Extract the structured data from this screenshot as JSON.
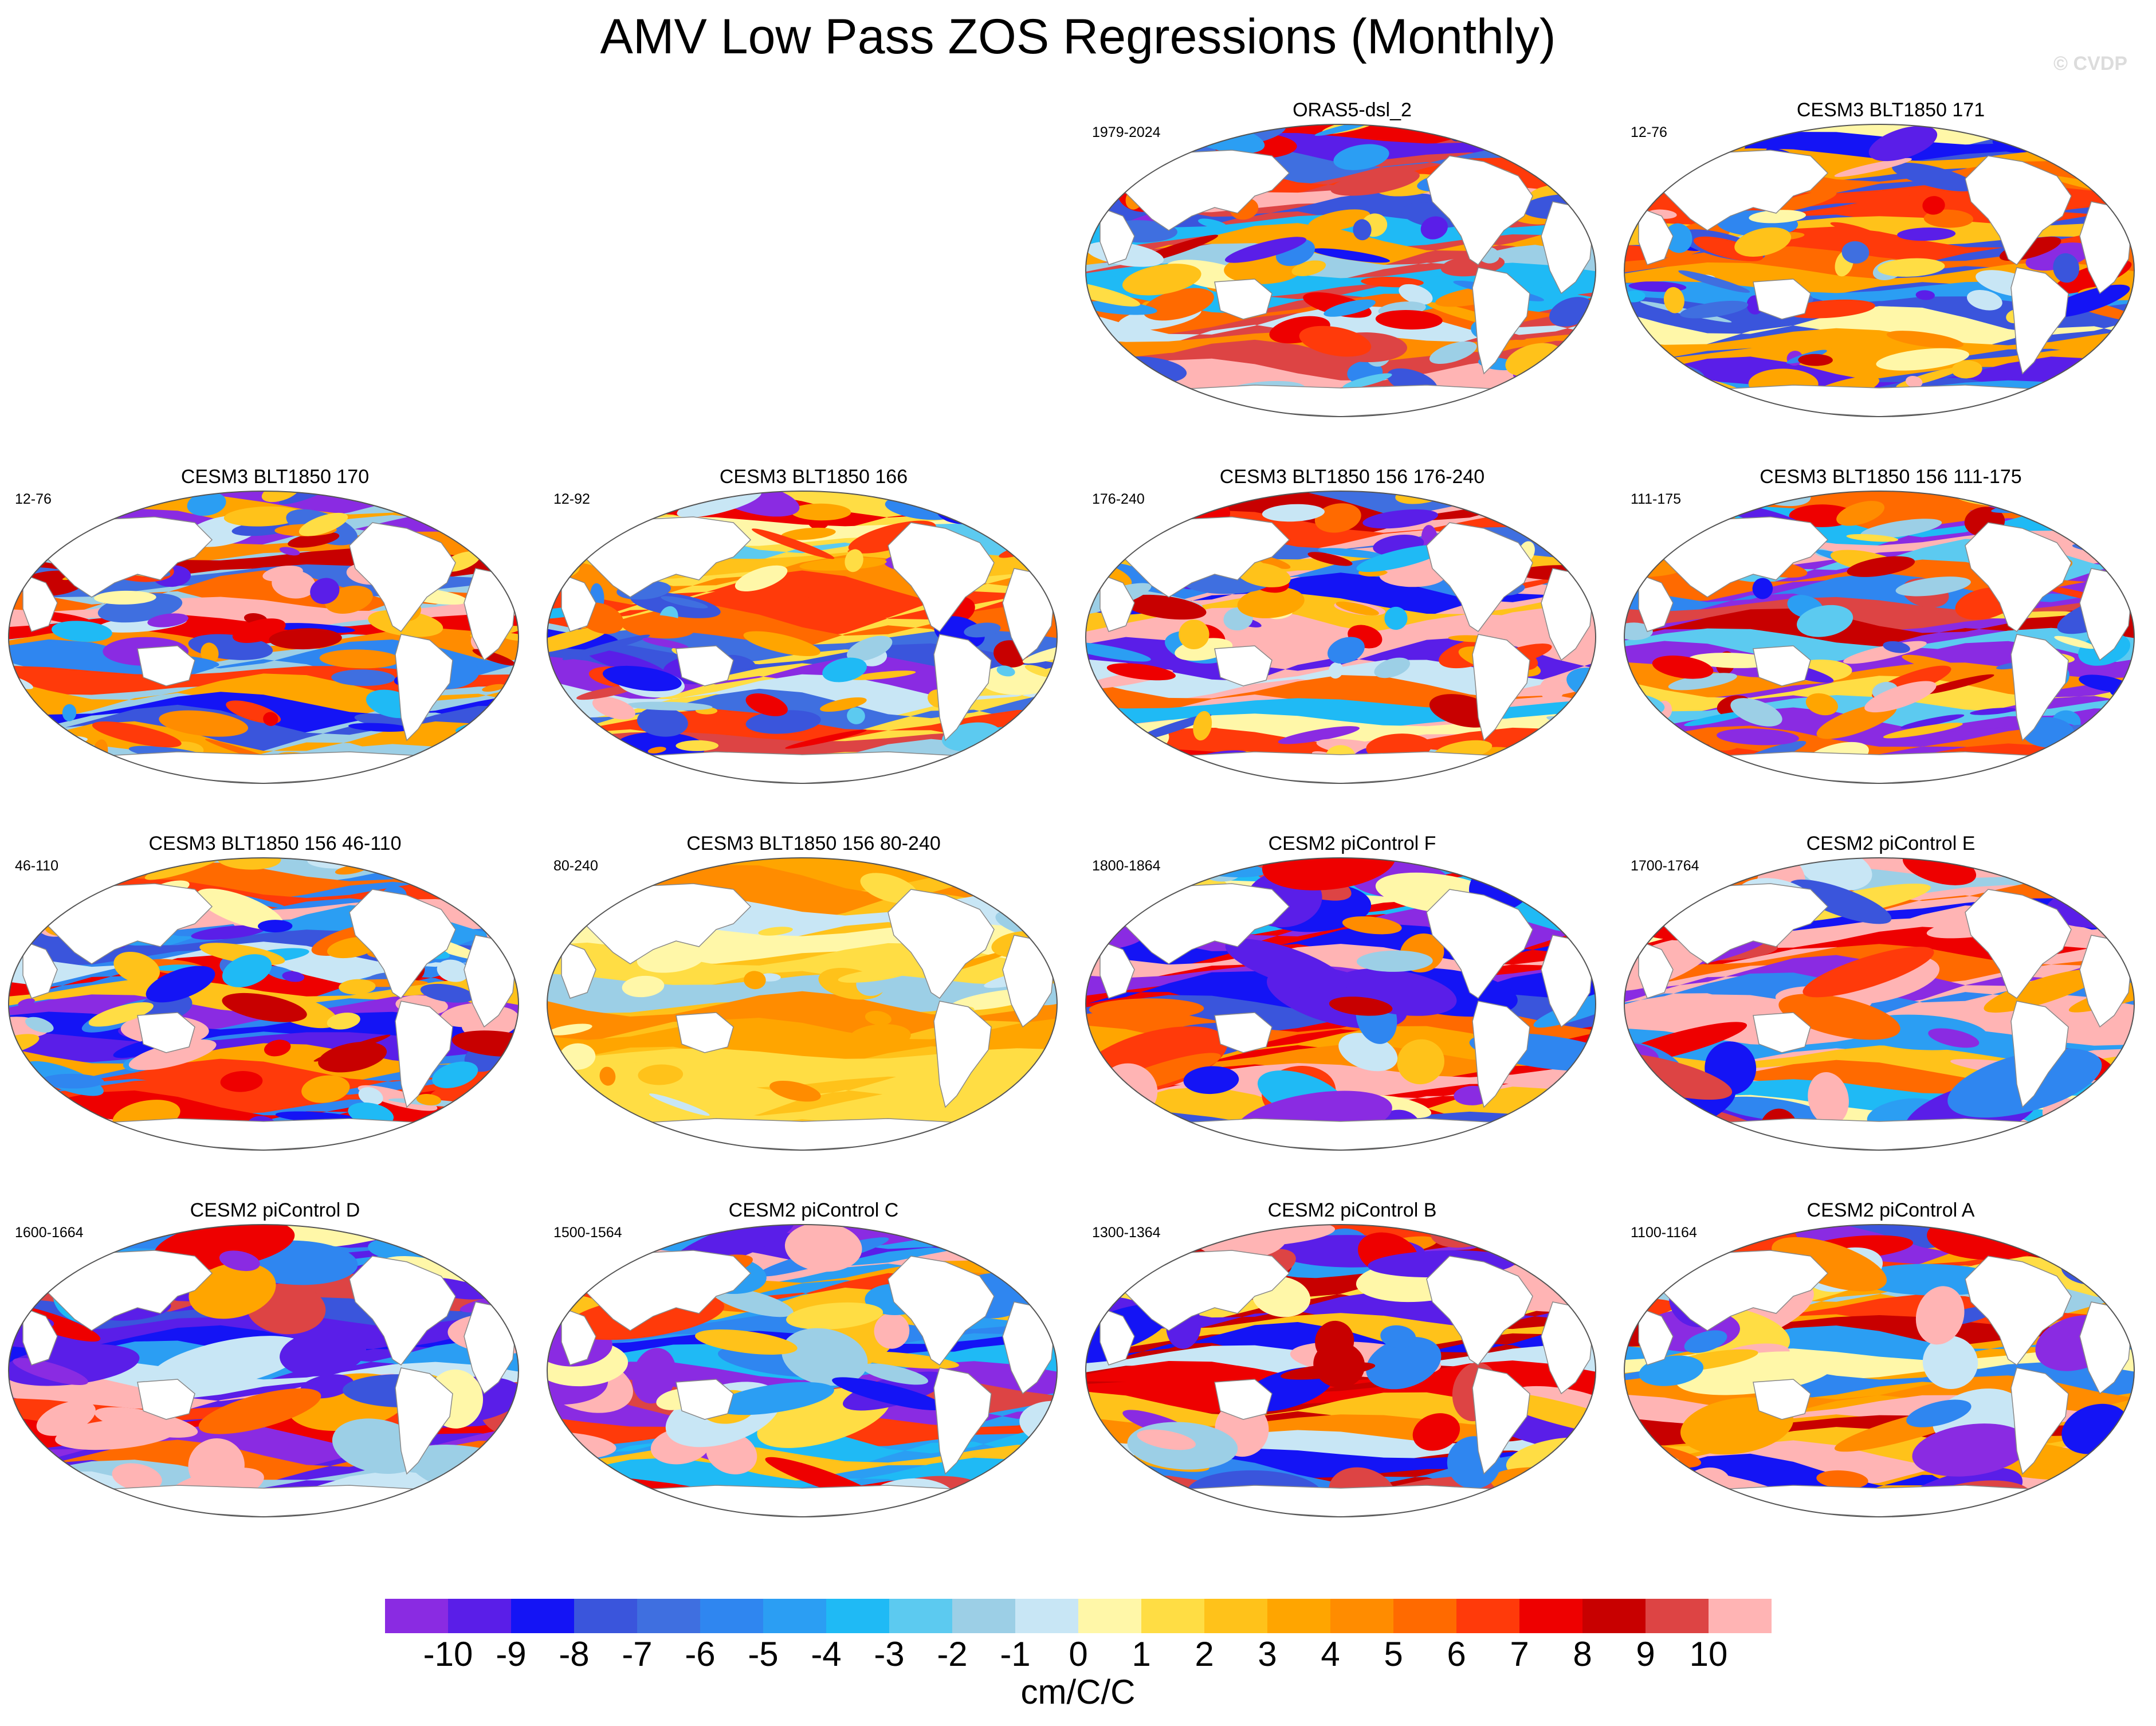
{
  "title": "AMV Low Pass ZOS Regressions (Monthly)",
  "watermark": "© CVDP",
  "panels": [
    {
      "title": "ORAS5-dsl_2",
      "years": "1979-2024",
      "pattern": "mixed",
      "seed": 11
    },
    {
      "title": "CESM3 BLT1850 171",
      "years": "12-76",
      "pattern": "warm",
      "seed": 12
    },
    {
      "title": "CESM3 BLT1850 170",
      "years": "12-76",
      "pattern": "warm",
      "seed": 13
    },
    {
      "title": "CESM3 BLT1850 166",
      "years": "12-92",
      "pattern": "mixed",
      "seed": 14
    },
    {
      "title": "CESM3 BLT1850 156 176-240",
      "years": "176-240",
      "pattern": "warm",
      "seed": 15
    },
    {
      "title": "CESM3 BLT1850 156 111-175",
      "years": "111-175",
      "pattern": "mixed",
      "seed": 16
    },
    {
      "title": "CESM3 BLT1850 156 46-110",
      "years": "46-110",
      "pattern": "warm",
      "seed": 17
    },
    {
      "title": "CESM3 BLT1850 156 80-240",
      "years": "80-240",
      "pattern": "smooth",
      "seed": 18
    },
    {
      "title": "CESM2 piControl F",
      "years": "1800-1864",
      "pattern": "strong",
      "seed": 19
    },
    {
      "title": "CESM2 piControl E",
      "years": "1700-1764",
      "pattern": "strong",
      "seed": 20
    },
    {
      "title": "CESM2 piControl D",
      "years": "1600-1664",
      "pattern": "strong",
      "seed": 21
    },
    {
      "title": "CESM2 piControl C",
      "years": "1500-1564",
      "pattern": "strong",
      "seed": 22
    },
    {
      "title": "CESM2 piControl B",
      "years": "1300-1364",
      "pattern": "strong",
      "seed": 23
    },
    {
      "title": "CESM2 piControl A",
      "years": "1100-1164",
      "pattern": "strong",
      "seed": 24
    }
  ],
  "colorbar": {
    "labels": [
      "-10",
      "-9",
      "-8",
      "-7",
      "-6",
      "-5",
      "-4",
      "-3",
      "-2",
      "-1",
      "0",
      "1",
      "2",
      "3",
      "4",
      "5",
      "6",
      "7",
      "8",
      "9",
      "10"
    ],
    "colors": [
      "#8a2be2",
      "#5a1ee8",
      "#1414f5",
      "#3a55dc",
      "#3f6fe0",
      "#2f86f0",
      "#2b9ef3",
      "#1fbaf5",
      "#5ccaf0",
      "#9ccfe6",
      "#c8e6f5",
      "#fff7a8",
      "#ffdd44",
      "#ffc21a",
      "#ffa500",
      "#ff8c00",
      "#ff6a00",
      "#ff3a0a",
      "#ee0000",
      "#c80000",
      "#dd4444",
      "#ffb4b4"
    ],
    "units": "cm/C/C"
  }
}
